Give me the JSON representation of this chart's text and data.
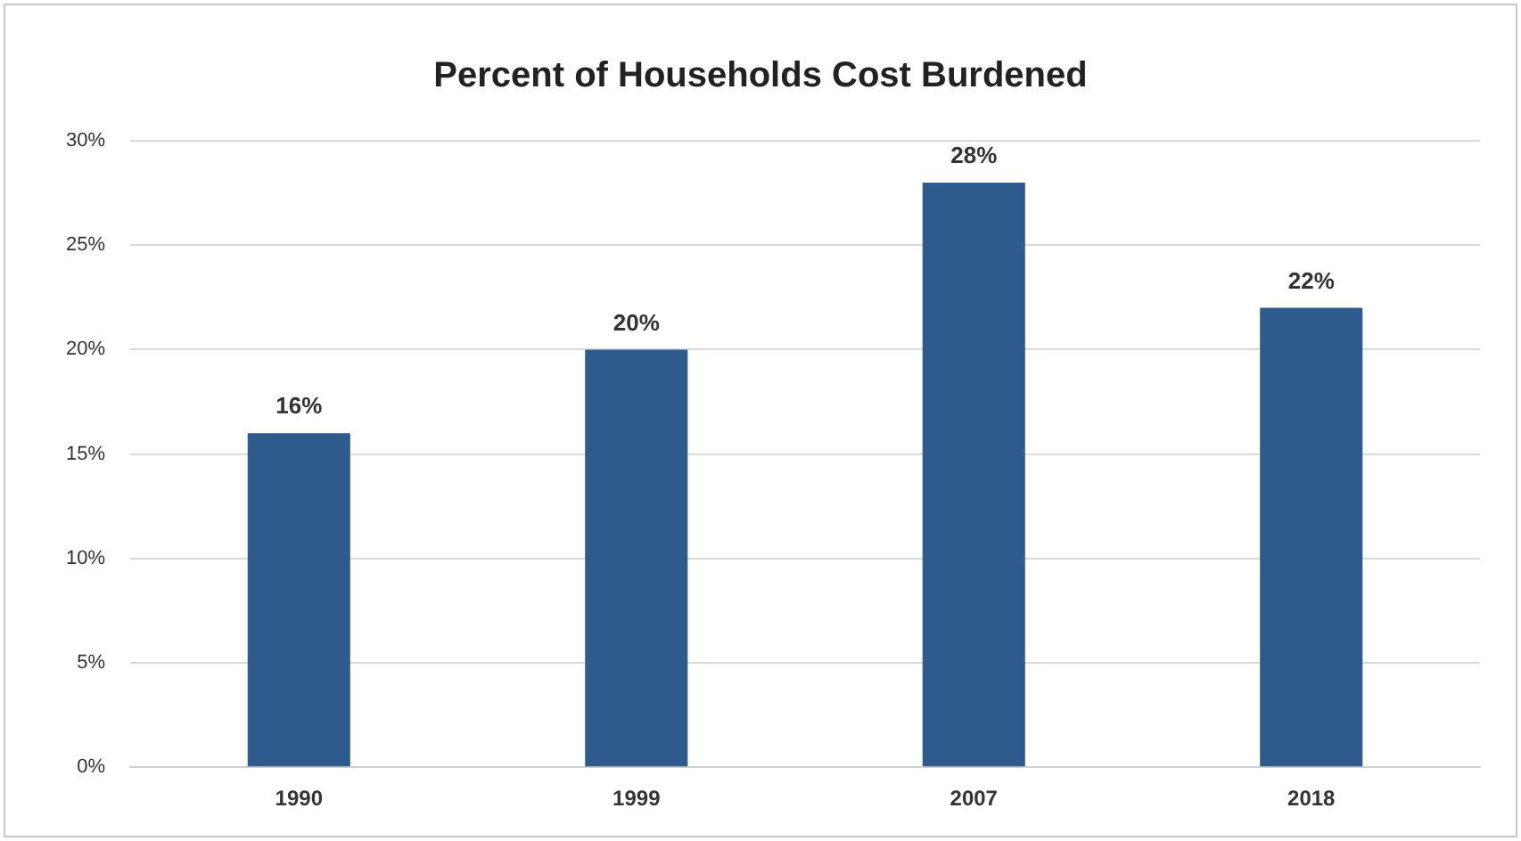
{
  "chart_data": {
    "type": "bar",
    "title": "Percent of Households Cost Burdened",
    "categories": [
      "1990",
      "1999",
      "2007",
      "2018"
    ],
    "values": [
      16,
      20,
      28,
      22
    ],
    "value_labels": [
      "16%",
      "20%",
      "28%",
      "22%"
    ],
    "color": "#2e5a8c",
    "ylim": [
      0,
      30
    ],
    "yticks": [
      {
        "value": 0,
        "label": "0%"
      },
      {
        "value": 5,
        "label": "5%"
      },
      {
        "value": 10,
        "label": "10%"
      },
      {
        "value": 15,
        "label": "15%"
      },
      {
        "value": 20,
        "label": "20%"
      },
      {
        "value": 25,
        "label": "25%"
      },
      {
        "value": 30,
        "label": "30%"
      }
    ],
    "grid": "y"
  }
}
